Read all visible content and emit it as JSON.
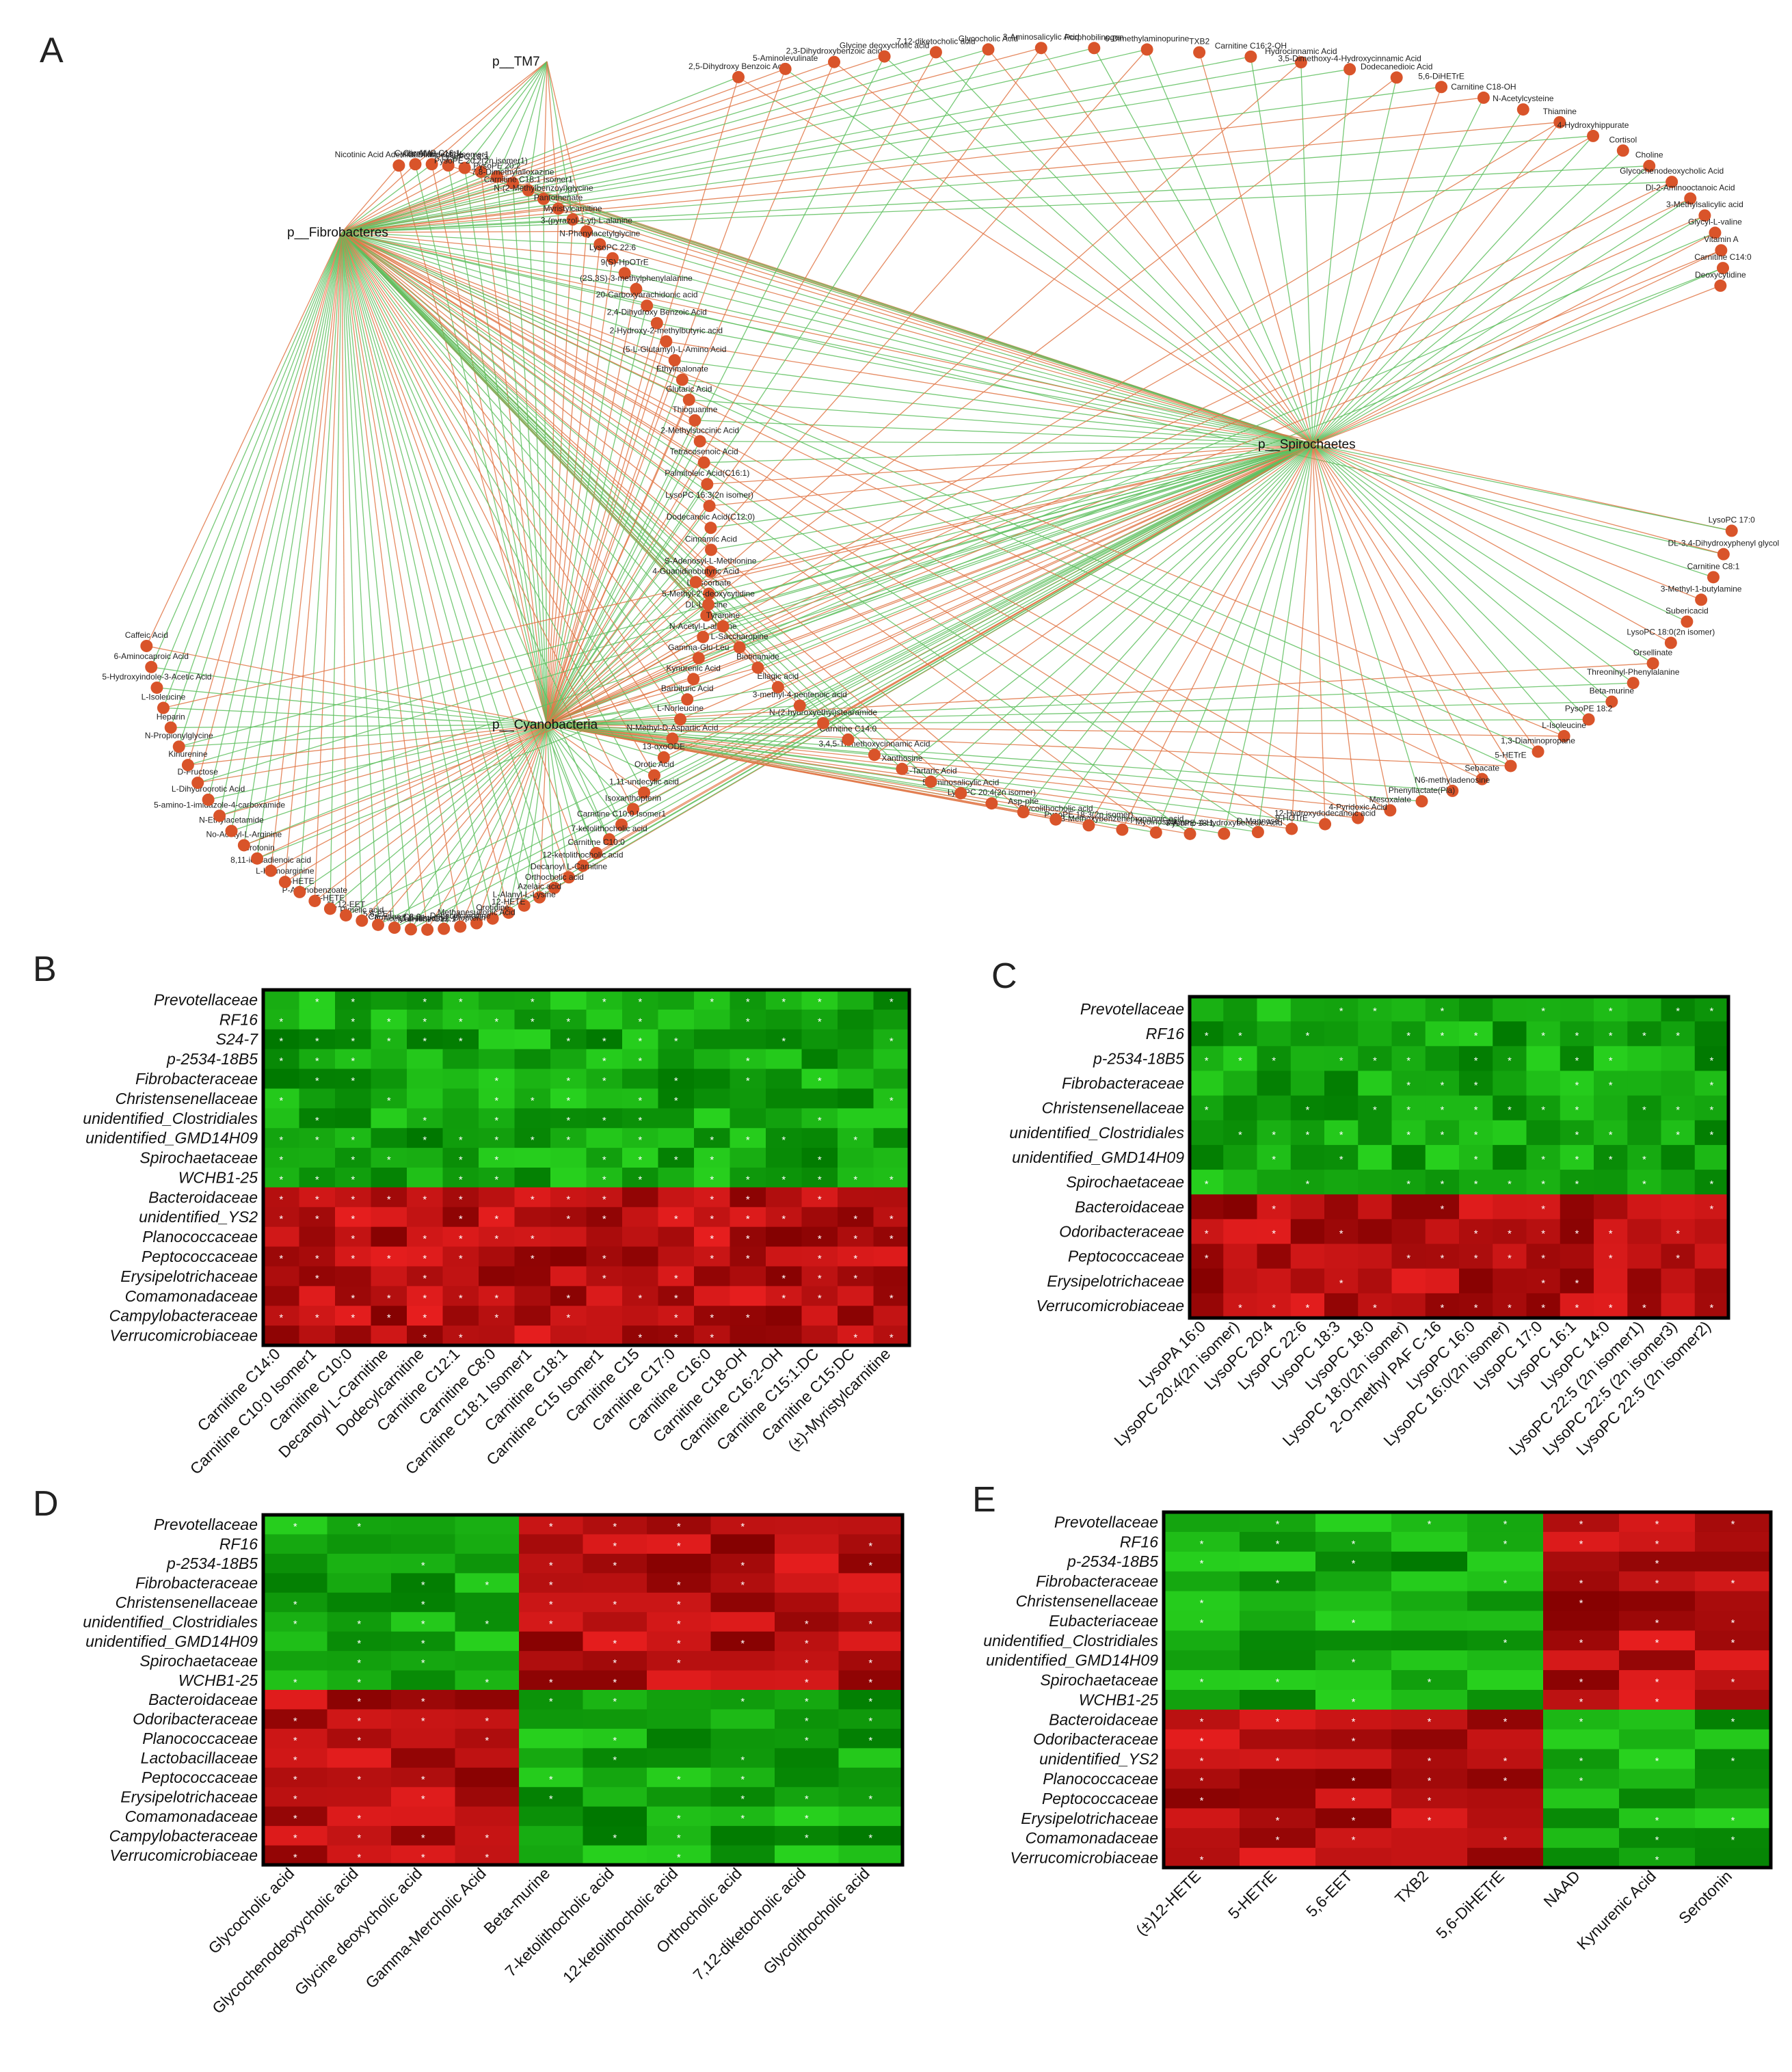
{
  "panel_labels": [
    "A",
    "B",
    "C",
    "D",
    "E"
  ],
  "chart_data": [
    {
      "type": "network",
      "panel": "A",
      "hubs": [
        "p__Fibrobacteres",
        "p__TM7",
        "p__Cyanobacteria",
        "p__Spirochaetes"
      ],
      "edge_colors": {
        "positive": "#5fbf5f",
        "negative": "#e07545"
      },
      "node_color": "#d9542a",
      "nodes": [
        "Nicotinic Acid Adenine Dinucleotide",
        "Cyclic AMP",
        "Carnitine C16:1",
        "Carnitine C11 Isomer1",
        "LysoPC 18:3",
        "PysoPE 20:2(2n isomer1)",
        "PysoPE 20:2",
        "7,8-Dimethylalloxazine",
        "Carnitine C18:1 Isomer1",
        "N-(2-Methylbenzoyl)glycine",
        "Pantothenate",
        "Myristylcarnitine",
        "3-(pyrazol-1-yl)-L-alanine",
        "N-Phenylacetylglycine",
        "LysoPC 22:6",
        "9(S)-HpOTrE",
        "(2S,3S)-3-methylphenylalanine",
        "20-Carboxyarachidonic acid",
        "2,4-Dihydroxy Benzoic Acid",
        "2-Hydroxy-2-methylbutyric acid",
        "(5-L-Glutamyl)-L-Amino Acid",
        "Ethylmalonate",
        "Glutaric Acid",
        "Thioguanine",
        "2-Methylsuccinic Acid",
        "Tetracosenoic Acid",
        "Palmitoleic Acid(C16:1)",
        "LysoPC 16:3(2n isomer)",
        "Dodecanoic Acid(C12:0)",
        "Cinnamic Acid",
        "S-Adenosyl-L-Methionine",
        "L-Ascorbate",
        "DL-Leucine",
        "N-Acetyl-L-alanine",
        "Gamma-Glu-Leu",
        "Kynurenic Acid",
        "Barbituric Acid",
        "L-Norleucine",
        "N-Methyl-D-Aspartic Acid",
        "13-oxoODE",
        "Orotic Acid",
        "1,11-undecylic acid",
        "Isoxanthopterin",
        "Carnitine C10:0 Isomer1",
        "7-ketolithocholic acid",
        "Carnitine C10:0",
        "12-ketolithocholic acid",
        "Decanoyl L-Carnitine",
        "Orthocholic acid",
        "Azelaic acid",
        "L-Alanyl-L-Lysine",
        "12-HETE",
        "Orotidine",
        "Methanesulfonic Acid",
        "Dodecylcarnitine",
        "7,8-dihydro-L-Biopterin",
        "Carnitine C12:1",
        "N-Acetyl-L-Histidine",
        "Carnitine C8:0",
        "5,6-EET",
        "Pimelic acid",
        "11,12-EET",
        "5-HETE",
        "P-Aminobenzoate",
        "9-HETE",
        "L-Homoarginine",
        "8,11-icosadienoic acid",
        "Serotonin",
        "No-Acetyl-L-Arginine",
        "N-Ethylacetamide",
        "5-amino-1-imidazole-4-carboxamide",
        "L-Dihydroorotic Acid",
        "D-Fructose",
        "Kinurenine",
        "N-Propionylglycine",
        "Heparin",
        "L-Isoleucine",
        "5-Hydroxyindole-3-Acetic Acid",
        "6-Aminocaproic Acid",
        "Caffeic Acid",
        "2,5-Dihydroxy Benzoic Acid",
        "5-Aminolevulinate",
        "2,3-Dihydroxybenzoic acid",
        "Glycine deoxycholic acid",
        "7,12-diketocholic acid",
        "Glycocholic Acid",
        "3-Aminosalicylic Acid",
        "Porphobilinogen",
        "6-Dimethylaminopurine",
        "TXB2",
        "Carnitine C16:2-OH",
        "Hydrocinnamic Acid",
        "3,5-Dimethoxy-4-Hydroxycinnamic Acid",
        "Dodecanedioic Acid",
        "5,6-DiHETrE",
        "Carnitine C18-OH",
        "N-Acetylcysteine",
        "Thiamine",
        "4-Hydroxyhippurate",
        "Cortisol",
        "Choline",
        "Glycochenodeoxycholic Acid",
        "Dl-2-Aminooctanoic Acid",
        "3-Methylsalicylic acid",
        "Glycyl-L-valine",
        "Vitamin A",
        "Carnitine C14:0",
        "Deoxycytidine",
        "LysoPC 17:0",
        "DL-3,4-Dihydroxyphenyl glycol",
        "Carnitine C8:1",
        "3-Methyl-1-butylamine",
        "Subericacid",
        "LysoPC 18:0(2n isomer)",
        "Orsellinate",
        "Threoninyl-Phenylalanine",
        "Beta-murine",
        "PysoPE 18:2",
        "L-Isoleucine",
        "1,3-Diaminopropane",
        "5-HETrE",
        "Sebacate",
        "N6-methyladenosine",
        "Phenyllactate(Pla)",
        "Mesoxalate",
        "4-Pyridoxic Acid",
        "12-Hydroxydodecanoic acid",
        "9-HOTrE",
        "D-Mannose",
        "3-Amino-4-Hydroxybenzoic Acid",
        "PysoPE 18:1",
        "Myoinositol",
        "3-Methoxybenzenepropanoic acid",
        "PysoPE 18:3(2n isomer)",
        "Glycolithocholic acid",
        "Asp-phe",
        "LysoPC 20:4(2n isomer)",
        "5-Aminosalicylic Acid",
        "L-Tartaric Acid",
        "Xanthosine",
        "3,4,5-Trimethoxycinnamic Acid",
        "Carnitine C14:0",
        "N-(2-hydroxyethyl)stearamide",
        "3-methyl-4-pentenoic acid",
        "Ellagic acid",
        "Biotinamide",
        "L-Saccharopine",
        "Tyramine",
        "5-Methyl-2'-deoxycytidine",
        "4-Guanidinobutyric Acid"
      ]
    },
    {
      "type": "heatmap",
      "panel": "B",
      "rows": [
        "Prevotellaceae",
        "RF16",
        "S24-7",
        "p-2534-18B5",
        "Fibrobacteraceae",
        "Christensenellaceae",
        "unidentified_Clostridiales",
        "unidentified_GMD14H09",
        "Spirochaetaceae",
        "WCHB1-25",
        "Bacteroidaceae",
        "unidentified_YS2",
        "Planococcaceae",
        "Peptococcaceae",
        "Erysipelotrichaceae",
        "Comamonadaceae",
        "Campylobacteraceae",
        "Verrucomicrobiaceae"
      ],
      "cols": [
        "Carnitine C14:0",
        "Carnitine C10:0 Isomer1",
        "Carnitine C10:0",
        "Decanoyl L-Carnitine",
        "Dodecylcarnitine",
        "Carnitine C12:1",
        "Carnitine C8:0",
        "Carnitine C18:1 Isomer1",
        "Carnitine C18:1",
        "Carnitine C15 Isomer1",
        "Carnitine C15",
        "Carnitine C17:0",
        "Carnitine C16:0",
        "Carnitine C18-OH",
        "Carnitine C16:2-OH",
        "Carnitine C15:1:DC",
        "Carnitine C15:DC",
        "(±)-Myristylcarnitine"
      ],
      "sign": [
        1,
        1,
        1,
        1,
        1,
        1,
        1,
        1,
        1,
        1,
        -1,
        -1,
        -1,
        -1,
        -1,
        -1,
        -1,
        -1
      ],
      "col_sign": [],
      "star_marker": "*"
    },
    {
      "type": "heatmap",
      "panel": "C",
      "rows": [
        "Prevotellaceae",
        "RF16",
        "p-2534-18B5",
        "Fibrobacteraceae",
        "Christensenellaceae",
        "unidentified_Clostridiales",
        "unidentified_GMD14H09",
        "Spirochaetaceae",
        "Bacteroidaceae",
        "Odoribacteraceae",
        "Peptococcaceae",
        "Erysipelotrichaceae",
        "Verrucomicrobiaceae"
      ],
      "cols": [
        "LysoPA 16:0",
        "LysoPC 20:4(2n isomer)",
        "LysoPC 20:4",
        "LysoPC 22:6",
        "LysoPC 18:3",
        "LysoPC 18:0",
        "LysoPC 18:0(2n isomer)",
        "2-O-methyl PAF C-16",
        "LysoPC 16:0",
        "LysoPC 16:0(2n isomer)",
        "LysoPC 17:0",
        "LysoPC 16:1",
        "LysoPC 14:0",
        "LysoPC 22:5 (2n isomer1)",
        "LysoPC 22:5 (2n isomer3)",
        "LysoPC 22:5 (2n isomer2)"
      ],
      "sign": [
        1,
        1,
        1,
        1,
        1,
        1,
        1,
        1,
        -1,
        -1,
        -1,
        -1,
        -1
      ],
      "col_sign": [],
      "star_marker": "*"
    },
    {
      "type": "heatmap",
      "panel": "D",
      "rows": [
        "Prevotellaceae",
        "RF16",
        "p-2534-18B5",
        "Fibrobacteraceae",
        "Christensenellaceae",
        "unidentified_Clostridiales",
        "unidentified_GMD14H09",
        "Spirochaetaceae",
        "WCHB1-25",
        "Bacteroidaceae",
        "Odoribacteraceae",
        "Planococcaceae",
        "Lactobacillaceae",
        "Peptococcaceae",
        "Erysipelotrichaceae",
        "Comamonadaceae",
        "Campylobacteraceae",
        "Verrucomicrobiaceae"
      ],
      "cols": [
        "Glycocholic acid",
        "Glycochenodeoxycholic acid",
        "Glycine deoxycholic acid",
        "Gamma-Mercholic Acid",
        "Beta-murine",
        "7-ketolithocholic acid",
        "12-ketolithocholic acid",
        "Orthocholic acid",
        "7,12-diketocholic acid",
        "Glycolithocholic acid"
      ],
      "sign": [
        1,
        1,
        1,
        1,
        1,
        1,
        1,
        1,
        1,
        -1,
        -1,
        -1,
        -1,
        -1,
        -1,
        -1,
        -1,
        -1
      ],
      "col_sign": [
        1,
        1,
        1,
        1,
        -1,
        -1,
        -1,
        -1,
        -1,
        -1
      ],
      "star_marker": "*"
    },
    {
      "type": "heatmap",
      "panel": "E",
      "rows": [
        "Prevotellaceae",
        "RF16",
        "p-2534-18B5",
        "Fibrobacteraceae",
        "Christensenellaceae",
        "Eubacteriaceae",
        "unidentified_Clostridiales",
        "unidentified_GMD14H09",
        "Spirochaetaceae",
        "WCHB1-25",
        "Bacteroidaceae",
        "Odoribacteraceae",
        "unidentified_YS2",
        "Planococcaceae",
        "Peptococcaceae",
        "Erysipelotrichaceae",
        "Comamonadaceae",
        "Verrucomicrobiaceae"
      ],
      "cols": [
        "(±)12-HETE",
        "5-HETrE",
        "5,6-EET",
        "TXB2",
        "5,6-DiHETrE",
        "NAAD",
        "Kynurenic Acid",
        "Serotonin"
      ],
      "sign": [
        1,
        1,
        1,
        1,
        1,
        1,
        1,
        1,
        1,
        1,
        -1,
        -1,
        -1,
        -1,
        -1,
        -1,
        -1,
        -1
      ],
      "col_sign": [
        1,
        1,
        1,
        1,
        1,
        -1,
        -1,
        -1
      ],
      "star_marker": "*"
    }
  ]
}
